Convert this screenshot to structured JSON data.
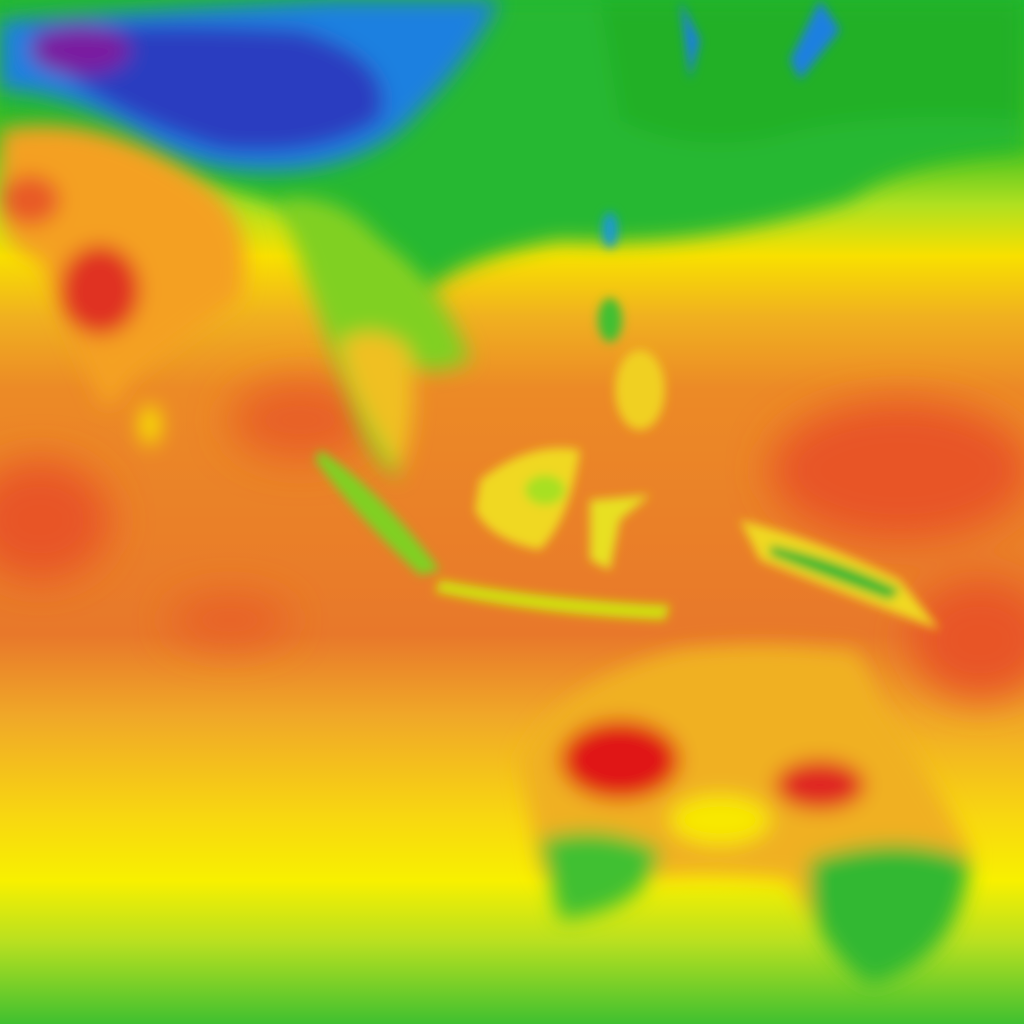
{
  "map": {
    "type": "temperature-heatmap",
    "palette": {
      "coldest": "#7a1fa0",
      "very_cold": "#2a3fc0",
      "cold": "#1080e0",
      "cool": "#20b830",
      "mild": "#a8e020",
      "warm": "#f8e800",
      "hot": "#f0a020",
      "very_hot": "#e86a28",
      "hottest": "#e01818"
    }
  }
}
